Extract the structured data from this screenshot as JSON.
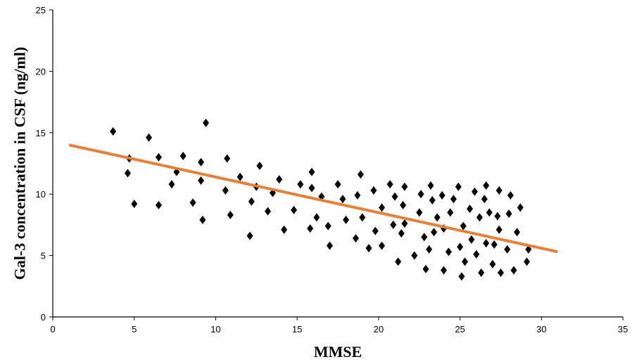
{
  "chart_data": {
    "type": "scatter",
    "title": "",
    "xlabel": "MMSE",
    "ylabel": "Gal-3 concentration in CSF (ng/ml)",
    "xlim": [
      0,
      35
    ],
    "ylim": [
      0,
      25
    ],
    "xticks": [
      "0",
      "5",
      "10",
      "15",
      "20",
      "25",
      "30",
      "35"
    ],
    "yticks": [
      "0",
      "5",
      "10",
      "15",
      "20",
      "25"
    ],
    "grid": false,
    "legend": "none",
    "colors": {
      "points": "#000000",
      "trendline": "#ED7D31",
      "axis": "#000000"
    },
    "marker": "diamond",
    "points": [
      [
        3.7,
        15.1
      ],
      [
        4.7,
        12.9
      ],
      [
        4.6,
        11.7
      ],
      [
        5.0,
        9.2
      ],
      [
        5.9,
        14.6
      ],
      [
        6.5,
        13.0
      ],
      [
        6.5,
        9.1
      ],
      [
        7.3,
        10.8
      ],
      [
        7.6,
        11.8
      ],
      [
        8.0,
        13.1
      ],
      [
        8.6,
        9.3
      ],
      [
        9.1,
        12.6
      ],
      [
        9.1,
        11.1
      ],
      [
        9.2,
        7.9
      ],
      [
        9.4,
        15.8
      ],
      [
        10.6,
        10.3
      ],
      [
        10.7,
        12.9
      ],
      [
        10.9,
        8.3
      ],
      [
        11.5,
        11.4
      ],
      [
        12.2,
        9.4
      ],
      [
        12.1,
        6.6
      ],
      [
        12.5,
        10.6
      ],
      [
        12.7,
        12.3
      ],
      [
        13.2,
        8.6
      ],
      [
        13.5,
        10.1
      ],
      [
        13.9,
        11.2
      ],
      [
        14.2,
        7.1
      ],
      [
        14.8,
        8.7
      ],
      [
        15.2,
        10.8
      ],
      [
        15.9,
        11.8
      ],
      [
        15.9,
        10.5
      ],
      [
        15.8,
        7.2
      ],
      [
        16.2,
        8.1
      ],
      [
        16.5,
        9.8
      ],
      [
        16.9,
        7.4
      ],
      [
        17.0,
        5.8
      ],
      [
        17.5,
        10.8
      ],
      [
        17.8,
        9.6
      ],
      [
        18.0,
        7.9
      ],
      [
        18.6,
        6.4
      ],
      [
        18.7,
        9.9
      ],
      [
        18.9,
        11.6
      ],
      [
        19.0,
        8.1
      ],
      [
        19.4,
        5.6
      ],
      [
        19.7,
        10.3
      ],
      [
        19.8,
        7.0
      ],
      [
        20.2,
        8.9
      ],
      [
        20.2,
        5.8
      ],
      [
        20.7,
        10.8
      ],
      [
        20.9,
        7.5
      ],
      [
        21.0,
        9.8
      ],
      [
        21.2,
        4.5
      ],
      [
        21.4,
        6.8
      ],
      [
        21.5,
        9.1
      ],
      [
        21.6,
        7.6
      ],
      [
        21.6,
        10.6
      ],
      [
        22.2,
        5.0
      ],
      [
        22.5,
        8.5
      ],
      [
        22.6,
        10.0
      ],
      [
        22.8,
        6.5
      ],
      [
        22.9,
        3.9
      ],
      [
        23.1,
        5.5
      ],
      [
        23.2,
        10.7
      ],
      [
        23.3,
        9.5
      ],
      [
        23.4,
        6.9
      ],
      [
        23.6,
        8.1
      ],
      [
        23.9,
        9.9
      ],
      [
        24.0,
        3.8
      ],
      [
        24.0,
        7.2
      ],
      [
        24.3,
        5.3
      ],
      [
        24.4,
        8.5
      ],
      [
        24.6,
        9.6
      ],
      [
        24.9,
        10.6
      ],
      [
        25.0,
        5.7
      ],
      [
        25.1,
        3.3
      ],
      [
        25.2,
        7.4
      ],
      [
        25.3,
        4.5
      ],
      [
        25.6,
        8.8
      ],
      [
        25.7,
        6.3
      ],
      [
        25.9,
        10.2
      ],
      [
        26.0,
        5.1
      ],
      [
        26.2,
        8.1
      ],
      [
        26.3,
        3.6
      ],
      [
        26.5,
        9.6
      ],
      [
        26.6,
        10.7
      ],
      [
        26.6,
        6.0
      ],
      [
        26.8,
        8.5
      ],
      [
        27.0,
        4.3
      ],
      [
        27.1,
        5.9
      ],
      [
        27.3,
        8.2
      ],
      [
        27.4,
        7.1
      ],
      [
        27.4,
        10.3
      ],
      [
        27.5,
        3.6
      ],
      [
        27.9,
        5.5
      ],
      [
        28.0,
        8.4
      ],
      [
        28.1,
        9.9
      ],
      [
        28.3,
        3.8
      ],
      [
        28.5,
        6.9
      ],
      [
        28.7,
        8.9
      ],
      [
        29.1,
        4.5
      ],
      [
        29.2,
        5.5
      ]
    ],
    "trendline": {
      "x": [
        1,
        31
      ],
      "y": [
        14.0,
        5.3
      ]
    }
  }
}
